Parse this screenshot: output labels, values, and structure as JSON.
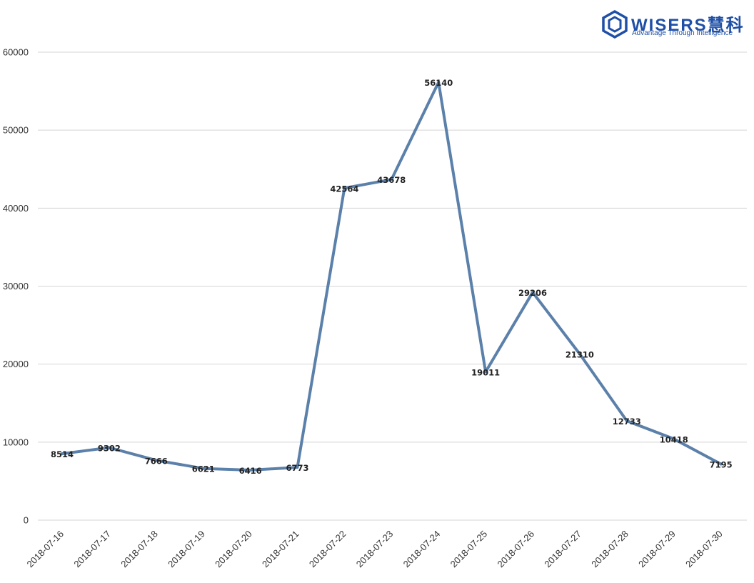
{
  "logo": {
    "word": "WISERS慧科",
    "tagline": "Advantage Through Intelligence",
    "color": "#1f4fa6"
  },
  "chart_data": {
    "type": "line",
    "title": "",
    "xlabel": "",
    "ylabel": "",
    "categories": [
      "2018-07-16",
      "2018-07-17",
      "2018-07-18",
      "2018-07-19",
      "2018-07-20",
      "2018-07-21",
      "2018-07-22",
      "2018-07-23",
      "2018-07-24",
      "2018-07-25",
      "2018-07-26",
      "2018-07-27",
      "2018-07-28",
      "2018-07-29",
      "2018-07-30"
    ],
    "series": [
      {
        "values": [
          8514,
          9302,
          7666,
          6621,
          6416,
          6773,
          42564,
          43678,
          56140,
          19011,
          29206,
          21310,
          12733,
          10418,
          7195
        ],
        "color": "#5b80aa"
      }
    ],
    "y_ticks": [
      0,
      10000,
      20000,
      30000,
      40000,
      50000,
      60000
    ],
    "ylim": [
      0,
      60000
    ],
    "grid": true,
    "legend": "none",
    "data_labels": true
  }
}
